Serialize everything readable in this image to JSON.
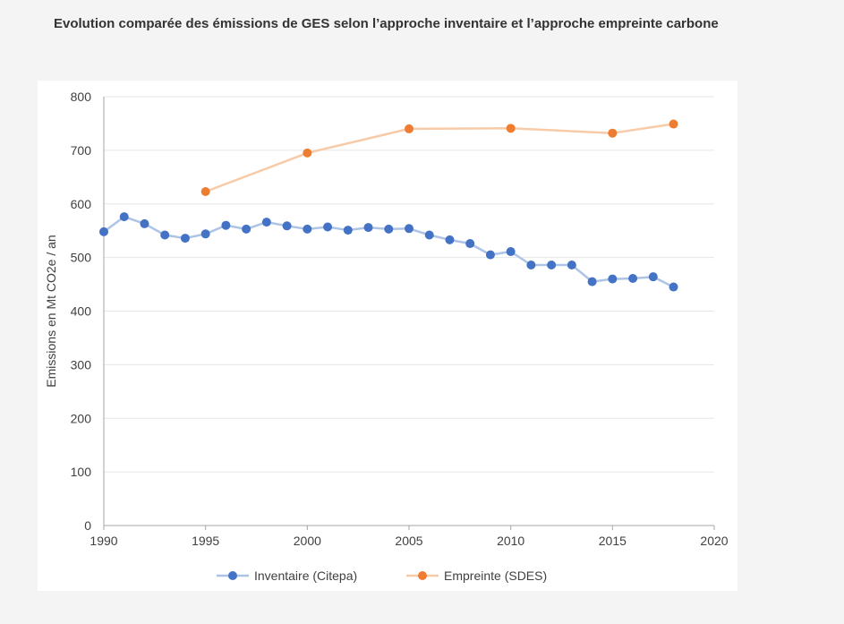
{
  "page": {
    "title": "Evolution comparée des émissions de GES selon l’approche inventaire et l’approche empreinte carbone"
  },
  "chart_data": {
    "type": "line",
    "title": "Evolution comparée des émissions de GES selon l’approche inventaire et l’approche empreinte carbone",
    "xlabel": "",
    "ylabel": "Emissions en Mt CO2e  / an",
    "xlim": [
      1990,
      2020
    ],
    "ylim": [
      0,
      800
    ],
    "x_ticks": [
      "1990",
      "1995",
      "2000",
      "2005",
      "2010",
      "2015",
      "2020"
    ],
    "y_ticks": [
      "0",
      "100",
      "200",
      "300",
      "400",
      "500",
      "600",
      "700",
      "800"
    ],
    "grid": "horizontal",
    "legend_position": "bottom",
    "series": [
      {
        "name": "Inventaire (Citepa)",
        "line_color": "#aec4e6",
        "marker_color": "#4472c4",
        "x": [
          1990,
          1991,
          1992,
          1993,
          1994,
          1995,
          1996,
          1997,
          1998,
          1999,
          2000,
          2001,
          2002,
          2003,
          2004,
          2005,
          2006,
          2007,
          2008,
          2009,
          2010,
          2011,
          2012,
          2013,
          2014,
          2015,
          2016,
          2017,
          2018
        ],
        "values": [
          548,
          576,
          563,
          542,
          536,
          544,
          560,
          553,
          566,
          559,
          553,
          557,
          551,
          556,
          553,
          554,
          542,
          533,
          526,
          505,
          511,
          486,
          486,
          486,
          455,
          460,
          461,
          464,
          445
        ]
      },
      {
        "name": "Empreinte (SDES)",
        "line_color": "#f8cba8",
        "marker_color": "#ed7d31",
        "x": [
          1995,
          2000,
          2005,
          2010,
          2015,
          2018
        ],
        "values": [
          623,
          695,
          740,
          741,
          732,
          749
        ]
      }
    ]
  }
}
